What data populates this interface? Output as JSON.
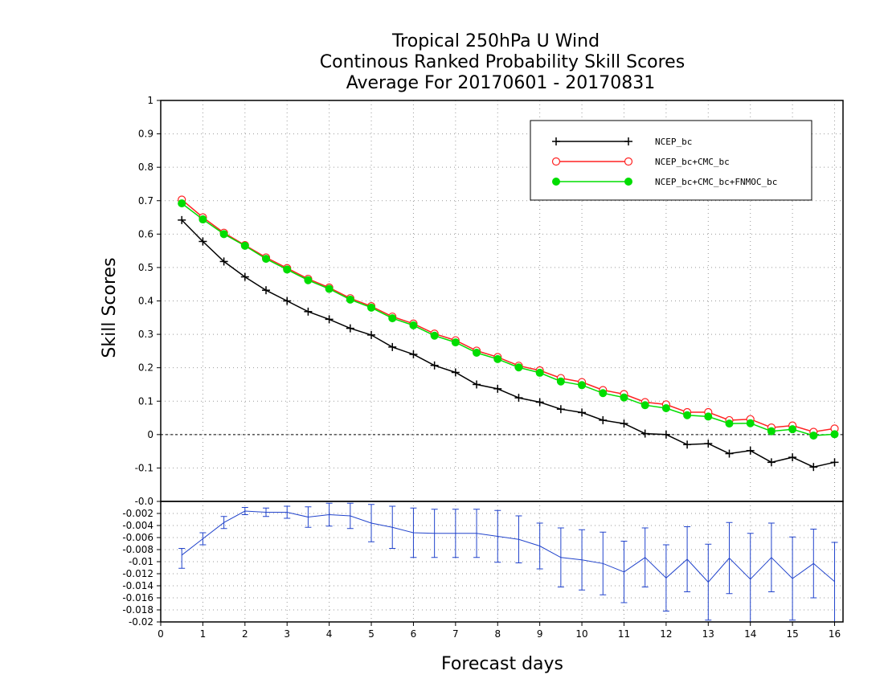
{
  "chart_data": [
    {
      "type": "line",
      "title_lines": [
        "Tropical 250hPa U Wind",
        "Continous Ranked Probability Skill Scores",
        "Average For 20170601 - 20170831"
      ],
      "xlabel": "Forecast days",
      "ylabel": "Skill Scores",
      "xlim": [
        0,
        16.2
      ],
      "ylim": [
        -0.2,
        1.0
      ],
      "x_ticks": [
        "0",
        "1",
        "2",
        "3",
        "4",
        "5",
        "6",
        "7",
        "8",
        "9",
        "10",
        "11",
        "12",
        "13",
        "14",
        "15",
        "16"
      ],
      "y_ticks": [
        "-0.1",
        "0",
        "0.1",
        "0.2",
        "0.3",
        "0.4",
        "0.5",
        "0.6",
        "0.7",
        "0.8",
        "0.9",
        "1"
      ],
      "grid": true,
      "legend_position": "top-right",
      "x": [
        0.5,
        1,
        1.5,
        2,
        2.5,
        3,
        3.5,
        4,
        4.5,
        5,
        5.5,
        6,
        6.5,
        7,
        7.5,
        8,
        8.5,
        9,
        9.5,
        10,
        10.5,
        11,
        11.5,
        12,
        12.5,
        13,
        13.5,
        14,
        14.5,
        15,
        15.5,
        16
      ],
      "series": [
        {
          "name": "NCEP_bc",
          "color": "#000000",
          "marker": "plus",
          "values": [
            0.642,
            0.578,
            0.518,
            0.472,
            0.432,
            0.4,
            0.368,
            0.345,
            0.318,
            0.298,
            0.262,
            0.24,
            0.207,
            0.186,
            0.15,
            0.137,
            0.11,
            0.097,
            0.076,
            0.066,
            0.043,
            0.033,
            0.003,
            0.0,
            -0.03,
            -0.027,
            -0.057,
            -0.048,
            -0.083,
            -0.068,
            -0.097,
            -0.083
          ]
        },
        {
          "name": "NCEP_bc+CMC_bc",
          "color": "#ff2222",
          "marker": "open-circle",
          "values": [
            0.703,
            0.65,
            0.604,
            0.567,
            0.53,
            0.498,
            0.466,
            0.44,
            0.408,
            0.384,
            0.353,
            0.332,
            0.302,
            0.282,
            0.251,
            0.232,
            0.206,
            0.192,
            0.169,
            0.157,
            0.133,
            0.121,
            0.097,
            0.09,
            0.067,
            0.067,
            0.043,
            0.046,
            0.021,
            0.027,
            0.008,
            0.018
          ]
        },
        {
          "name": "NCEP_bc+CMC_bc+FNMOC_bc",
          "color": "#00dd00",
          "marker": "filled-circle",
          "values": [
            0.692,
            0.644,
            0.6,
            0.565,
            0.526,
            0.494,
            0.462,
            0.436,
            0.404,
            0.38,
            0.348,
            0.327,
            0.296,
            0.276,
            0.245,
            0.226,
            0.201,
            0.185,
            0.159,
            0.148,
            0.124,
            0.111,
            0.088,
            0.079,
            0.058,
            0.054,
            0.033,
            0.034,
            0.01,
            0.016,
            -0.003,
            0.001
          ]
        }
      ]
    },
    {
      "type": "line",
      "xlim": [
        0,
        16.2
      ],
      "ylim": [
        -0.02,
        0.0
      ],
      "y_ticks": [
        "-0.02",
        "-0.018",
        "-0.016",
        "-0.014",
        "-0.012",
        "-0.01",
        "-0.008",
        "-0.006",
        "-0.004",
        "-0.002",
        "-0.0"
      ],
      "grid": true,
      "x": [
        0.5,
        1,
        1.5,
        2,
        2.5,
        3,
        3.5,
        4,
        4.5,
        5,
        5.5,
        6,
        6.5,
        7,
        7.5,
        8,
        8.5,
        9,
        9.5,
        10,
        10.5,
        11,
        11.5,
        12,
        12.5,
        13,
        13.5,
        14,
        14.5,
        15,
        15.5,
        16
      ],
      "series": [
        {
          "color": "#2244cc",
          "values": [
            -0.0089,
            -0.0062,
            -0.0035,
            -0.0016,
            -0.0018,
            -0.0018,
            -0.0026,
            -0.0022,
            -0.0024,
            -0.0036,
            -0.0043,
            -0.0052,
            -0.0053,
            -0.0053,
            -0.0053,
            -0.0058,
            -0.0063,
            -0.0074,
            -0.0093,
            -0.0097,
            -0.0103,
            -0.0117,
            -0.0093,
            -0.0127,
            -0.0096,
            -0.0134,
            -0.0094,
            -0.0129,
            -0.0093,
            -0.0128,
            -0.0103,
            -0.0133
          ],
          "err_low": [
            -0.0111,
            -0.0072,
            -0.0045,
            -0.0022,
            -0.0025,
            -0.0028,
            -0.0043,
            -0.0041,
            -0.0045,
            -0.0067,
            -0.0078,
            -0.0093,
            -0.0093,
            -0.0093,
            -0.0093,
            -0.0101,
            -0.0102,
            -0.0112,
            -0.0142,
            -0.0147,
            -0.0155,
            -0.0168,
            -0.0142,
            -0.0182,
            -0.015,
            -0.0197,
            -0.0153,
            -0.0205,
            -0.015,
            -0.0197,
            -0.016,
            -0.02
          ],
          "err_high": [
            -0.0078,
            -0.0052,
            -0.0025,
            -0.001,
            -0.0011,
            -0.0008,
            -0.0009,
            -0.0003,
            -0.0003,
            -0.0005,
            -0.0008,
            -0.0011,
            -0.0013,
            -0.0013,
            -0.0013,
            -0.0015,
            -0.0024,
            -0.0036,
            -0.0044,
            -0.0047,
            -0.0051,
            -0.0066,
            -0.0044,
            -0.0072,
            -0.0042,
            -0.0071,
            -0.0035,
            -0.0053,
            -0.0036,
            -0.0059,
            -0.0046,
            -0.0068
          ]
        }
      ]
    }
  ]
}
